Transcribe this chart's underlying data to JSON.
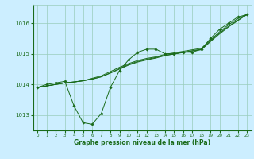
{
  "background_color": "#cceeff",
  "grid_color": "#99ccbb",
  "line_color": "#1a6b1a",
  "marker_color": "#1a6b1a",
  "xlabel": "Graphe pression niveau de la mer (hPa)",
  "xlabel_color": "#1a6b1a",
  "ylim": [
    1012.5,
    1016.6
  ],
  "xlim": [
    -0.5,
    23.5
  ],
  "yticks": [
    1013,
    1014,
    1015,
    1016
  ],
  "xticks": [
    0,
    1,
    2,
    3,
    4,
    5,
    6,
    7,
    8,
    9,
    10,
    11,
    12,
    13,
    14,
    15,
    16,
    17,
    18,
    19,
    20,
    21,
    22,
    23
  ],
  "series_volatile": [
    1013.9,
    1014.0,
    1014.05,
    1014.1,
    1013.3,
    1012.75,
    1012.7,
    1013.05,
    1013.9,
    1014.45,
    1014.8,
    1015.05,
    1015.15,
    1015.15,
    1015.0,
    1015.0,
    1015.05,
    1015.05,
    1015.15,
    1015.5,
    1015.8,
    1016.0,
    1016.2,
    1016.28
  ],
  "series_smooth1": [
    1013.9,
    1013.95,
    1014.0,
    1014.05,
    1014.08,
    1014.12,
    1014.18,
    1014.25,
    1014.38,
    1014.52,
    1014.65,
    1014.75,
    1014.82,
    1014.88,
    1014.95,
    1015.0,
    1015.05,
    1015.1,
    1015.15,
    1015.42,
    1015.68,
    1015.9,
    1016.1,
    1016.28
  ],
  "series_smooth2": [
    1013.9,
    1013.95,
    1014.0,
    1014.05,
    1014.08,
    1014.12,
    1014.2,
    1014.28,
    1014.42,
    1014.56,
    1014.68,
    1014.78,
    1014.85,
    1014.9,
    1014.98,
    1015.03,
    1015.08,
    1015.13,
    1015.18,
    1015.45,
    1015.72,
    1015.95,
    1016.15,
    1016.28
  ],
  "series_smooth3": [
    1013.9,
    1013.95,
    1014.0,
    1014.05,
    1014.08,
    1014.12,
    1014.17,
    1014.25,
    1014.37,
    1014.5,
    1014.63,
    1014.73,
    1014.8,
    1014.86,
    1014.94,
    1014.99,
    1015.04,
    1015.09,
    1015.13,
    1015.4,
    1015.65,
    1015.88,
    1016.08,
    1016.28
  ]
}
